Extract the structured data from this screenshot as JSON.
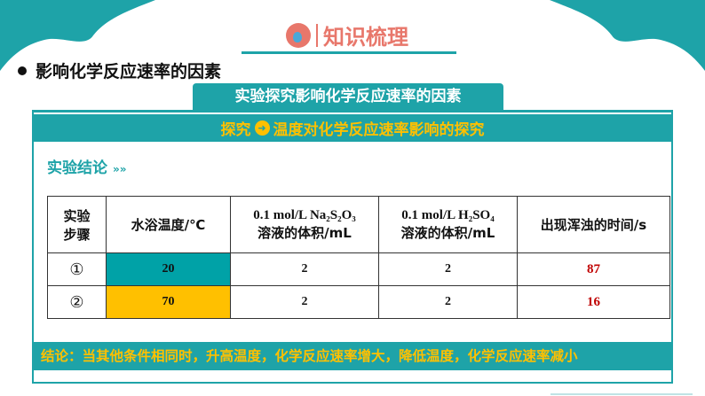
{
  "header": {
    "title": "知识梳理",
    "icon": "flask-icon"
  },
  "section": {
    "heading": "影响化学反应速率的因素"
  },
  "tab": {
    "label": "实验探究影响化学反应速率的因素"
  },
  "band": {
    "prefix": "探究",
    "title": "温度对化学反应速率影响的探究"
  },
  "subtitle": {
    "label": "实验结论",
    "chevrons": "»»"
  },
  "table": {
    "headers": [
      [
        "实验",
        "步骤"
      ],
      [
        "水浴温度/℃"
      ],
      [
        "0.1 mol/L Na₂S₂O₃",
        "溶液的体积/mL"
      ],
      [
        "0.1 mol/L H₂SO₄",
        "溶液的体积/mL"
      ],
      [
        "出现浑浊的时间/s"
      ]
    ],
    "rows": [
      [
        "①",
        "20",
        "2",
        "2",
        "87"
      ],
      [
        "②",
        "70",
        "2",
        "2",
        "16"
      ]
    ]
  },
  "conclusion": "结论：当其他条件相同时，升高温度，化学反应速率增大，降低温度，化学反应速率减小",
  "colors": {
    "teal": "#1ea3a8",
    "yellow": "#ffc000",
    "red": "#c00000",
    "title": "#e8776b"
  }
}
